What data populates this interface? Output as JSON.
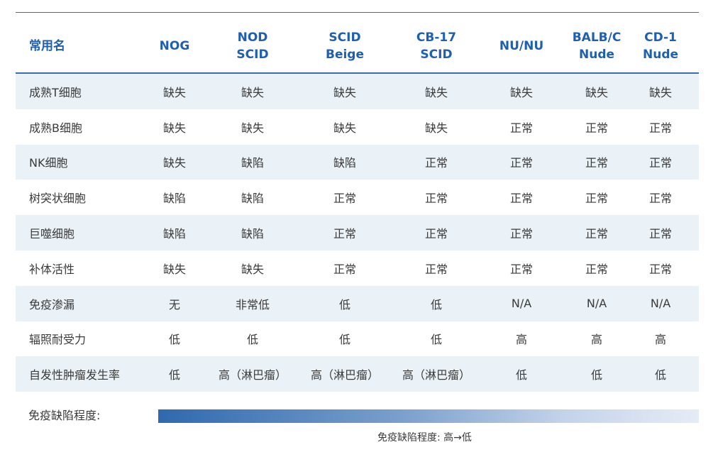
{
  "table": {
    "columns": [
      [
        "常用名"
      ],
      [
        "NOG"
      ],
      [
        "NOD",
        "SCID"
      ],
      [
        "SCID",
        "Beige"
      ],
      [
        "CB-17",
        "SCID"
      ],
      [
        "NU/NU"
      ],
      [
        "BALB/C",
        "Nude"
      ],
      [
        "CD-1",
        "Nude"
      ]
    ],
    "rows": [
      [
        "成熟T细胞",
        "缺失",
        "缺失",
        "缺失",
        "缺失",
        "缺失",
        "缺失",
        "缺失"
      ],
      [
        "成熟B细胞",
        "缺失",
        "缺失",
        "缺失",
        "缺失",
        "正常",
        "正常",
        "正常"
      ],
      [
        "NK细胞",
        "缺失",
        "缺陷",
        "缺陷",
        "正常",
        "正常",
        "正常",
        "正常"
      ],
      [
        "树突状细胞",
        "缺陷",
        "缺陷",
        "正常",
        "正常",
        "正常",
        "正常",
        "正常"
      ],
      [
        "巨噬细胞",
        "缺陷",
        "缺陷",
        "正常",
        "正常",
        "正常",
        "正常",
        "正常"
      ],
      [
        "补体活性",
        "缺失",
        "缺失",
        "正常",
        "正常",
        "正常",
        "正常",
        "正常"
      ],
      [
        "免疫渗漏",
        "无",
        "非常低",
        "低",
        "低",
        "N/A",
        "N/A",
        "N/A"
      ],
      [
        "辐照耐受力",
        "低",
        "低",
        "低",
        "低",
        "高",
        "高",
        "高"
      ],
      [
        "自发性肿瘤发生率",
        "低",
        "高（淋巴瘤）",
        "高（淋巴瘤）",
        "高（淋巴瘤）",
        "低",
        "低",
        "低"
      ]
    ]
  },
  "legend": {
    "label": "免疫缺陷程度:",
    "caption": "免疫缺陷程度: 高→低",
    "gradient_colors": [
      "#2f69ae",
      "#7aa0cc",
      "#c3d3e9",
      "#e6ecf6"
    ]
  }
}
